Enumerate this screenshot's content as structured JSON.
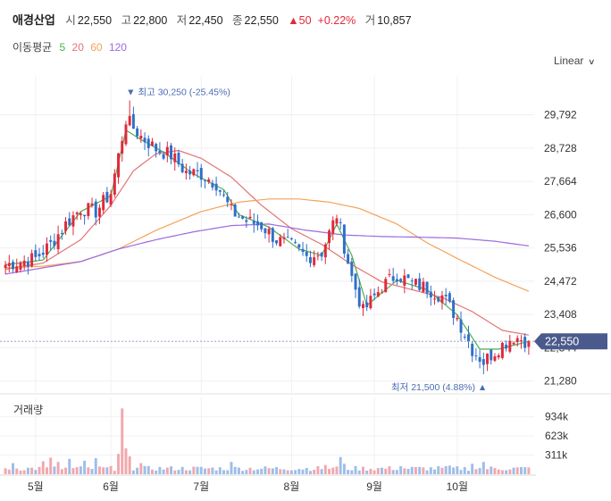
{
  "header": {
    "name": "애경산업",
    "open_label": "시",
    "open": "22,550",
    "high_label": "고",
    "high": "22,800",
    "low_label": "저",
    "low": "22,450",
    "close_label": "종",
    "close": "22,550",
    "change_arrow": "▲",
    "change": "50",
    "change_pct": "+0.22%",
    "volume_label": "거",
    "volume": "10,857",
    "up_color": "#e0293b"
  },
  "moving_average": {
    "title": "이동평균",
    "periods": [
      {
        "label": "5",
        "color": "#4caf50"
      },
      {
        "label": "20",
        "color": "#e57373"
      },
      {
        "label": "60",
        "color": "#f4a259"
      },
      {
        "label": "120",
        "color": "#9c6ade"
      }
    ]
  },
  "scale_selector": {
    "label": "Linear",
    "icon": "chevron-down-icon"
  },
  "volume_panel": {
    "title": "거래량"
  },
  "chart_data": [
    {
      "type": "candlestick",
      "title": "",
      "x_tick_labels": [
        "5월",
        "6월",
        "7월",
        "8월",
        "9월",
        "10월"
      ],
      "y_tick_labels": [
        "29,792",
        "28,728",
        "27,664",
        "26,600",
        "25,536",
        "24,472",
        "23,408",
        "22,344",
        "21,280"
      ],
      "y_ticks": [
        29792,
        28728,
        27664,
        26600,
        25536,
        24472,
        23408,
        22344,
        21280
      ],
      "ylim": [
        20900,
        30750
      ],
      "n_periods": 140,
      "month_start_index": [
        8,
        28,
        52,
        76,
        98,
        120
      ],
      "current_price": {
        "label": "22,550",
        "value": 22550,
        "color": "#4a5a8c"
      },
      "annotations": [
        {
          "text": "최고 30,250 (-25.45%)",
          "marker": "▼",
          "value": 30250,
          "index": 33
        },
        {
          "text": "최저 21,500 (4.88%)",
          "marker": "▲",
          "value": 21500,
          "index": 127
        }
      ],
      "up_color": "#e0293b",
      "down_color": "#2f6fc9",
      "anchor_close": [
        [
          0,
          25000
        ],
        [
          8,
          25200
        ],
        [
          12,
          25650
        ],
        [
          16,
          26300
        ],
        [
          20,
          26800
        ],
        [
          24,
          26700
        ],
        [
          28,
          27300
        ],
        [
          32,
          29650
        ],
        [
          36,
          29100
        ],
        [
          40,
          28700
        ],
        [
          44,
          28500
        ],
        [
          48,
          27950
        ],
        [
          52,
          27900
        ],
        [
          56,
          27600
        ],
        [
          60,
          26700
        ],
        [
          64,
          26400
        ],
        [
          68,
          26250
        ],
        [
          72,
          25800
        ],
        [
          76,
          25600
        ],
        [
          80,
          25250
        ],
        [
          84,
          25400
        ],
        [
          88,
          26600
        ],
        [
          92,
          24600
        ],
        [
          95,
          23500
        ],
        [
          100,
          24300
        ],
        [
          104,
          24700
        ],
        [
          108,
          24400
        ],
        [
          112,
          24250
        ],
        [
          116,
          24000
        ],
        [
          120,
          23300
        ],
        [
          124,
          22300
        ],
        [
          127,
          21900
        ],
        [
          131,
          22350
        ],
        [
          135,
          22700
        ],
        [
          139,
          22550
        ]
      ],
      "ma_series": [
        {
          "name": "5",
          "color": "#4caf50",
          "values": [
            [
              0,
              25000
            ],
            [
              10,
              25150
            ],
            [
              20,
              26700
            ],
            [
              28,
              27200
            ],
            [
              32,
              29300
            ],
            [
              36,
              29000
            ],
            [
              42,
              28600
            ],
            [
              50,
              27900
            ],
            [
              58,
              27400
            ],
            [
              62,
              26600
            ],
            [
              70,
              26200
            ],
            [
              78,
              25500
            ],
            [
              84,
              25300
            ],
            [
              88,
              26300
            ],
            [
              92,
              25300
            ],
            [
              96,
              23700
            ],
            [
              104,
              24500
            ],
            [
              112,
              24200
            ],
            [
              120,
              23400
            ],
            [
              126,
              22300
            ],
            [
              131,
              22300
            ],
            [
              139,
              22550
            ]
          ]
        },
        {
          "name": "20",
          "color": "#e57373",
          "values": [
            [
              0,
              24850
            ],
            [
              10,
              25050
            ],
            [
              20,
              25800
            ],
            [
              28,
              26900
            ],
            [
              34,
              28000
            ],
            [
              40,
              28550
            ],
            [
              46,
              28650
            ],
            [
              52,
              28400
            ],
            [
              60,
              27800
            ],
            [
              68,
              26900
            ],
            [
              76,
              26150
            ],
            [
              84,
              25650
            ],
            [
              92,
              25000
            ],
            [
              100,
              24450
            ],
            [
              108,
              24200
            ],
            [
              116,
              23950
            ],
            [
              124,
              23500
            ],
            [
              132,
              22900
            ],
            [
              139,
              22750
            ]
          ]
        },
        {
          "name": "60",
          "color": "#f4a259",
          "values": [
            [
              0,
              24900
            ],
            [
              10,
              24950
            ],
            [
              20,
              25100
            ],
            [
              30,
              25500
            ],
            [
              40,
              26100
            ],
            [
              52,
              26700
            ],
            [
              62,
              27000
            ],
            [
              70,
              27100
            ],
            [
              78,
              27100
            ],
            [
              86,
              27000
            ],
            [
              94,
              26800
            ],
            [
              104,
              26300
            ],
            [
              112,
              25700
            ],
            [
              120,
              25200
            ],
            [
              130,
              24600
            ],
            [
              139,
              24150
            ]
          ]
        },
        {
          "name": "120",
          "color": "#9c6ade",
          "values": [
            [
              0,
              24700
            ],
            [
              10,
              24900
            ],
            [
              20,
              25100
            ],
            [
              30,
              25500
            ],
            [
              40,
              25800
            ],
            [
              50,
              26050
            ],
            [
              60,
              26250
            ],
            [
              70,
              26300
            ],
            [
              80,
              26100
            ],
            [
              90,
              25950
            ],
            [
              100,
              25900
            ],
            [
              110,
              25880
            ],
            [
              120,
              25850
            ],
            [
              130,
              25750
            ],
            [
              139,
              25600
            ]
          ]
        }
      ]
    },
    {
      "type": "bar",
      "title": "거래량",
      "y_tick_labels": [
        "934k",
        "623k",
        "311k"
      ],
      "y_ticks": [
        934000,
        623000,
        311000
      ],
      "ylim": [
        0,
        1250000
      ],
      "peak_volume": {
        "index": 31,
        "value": 1070000
      },
      "base_volume": 90000,
      "spikes": [
        [
          2,
          180000
        ],
        [
          10,
          210000
        ],
        [
          12,
          270000
        ],
        [
          14,
          200000
        ],
        [
          17,
          250000
        ],
        [
          21,
          220000
        ],
        [
          24,
          260000
        ],
        [
          30,
          330000
        ],
        [
          31,
          1070000
        ],
        [
          32,
          420000
        ],
        [
          33,
          290000
        ],
        [
          36,
          180000
        ],
        [
          60,
          200000
        ],
        [
          85,
          150000
        ],
        [
          89,
          280000
        ],
        [
          90,
          170000
        ],
        [
          105,
          130000
        ],
        [
          118,
          140000
        ],
        [
          124,
          170000
        ],
        [
          127,
          200000
        ]
      ]
    }
  ]
}
